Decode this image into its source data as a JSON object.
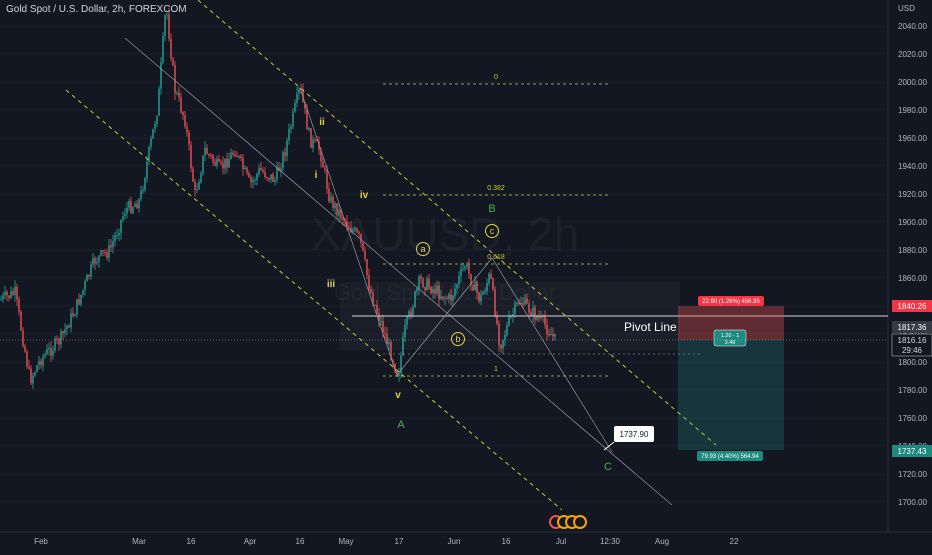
{
  "title": "Gold Spot / U.S. Dollar, 2h, FOREXCOM",
  "watermark": {
    "symbol": "XAUUSD, 2h",
    "name": "Gold Spot / U.S. Dollar"
  },
  "currency": "USD",
  "y_ticks": [
    "2040.00",
    "2020.00",
    "2000.00",
    "1980.00",
    "1960.00",
    "1940.00",
    "1920.00",
    "1900.00",
    "1880.00",
    "1860.00",
    "1840.00",
    "1820.00",
    "1800.00",
    "1780.00",
    "1760.00",
    "1740.00",
    "1720.00",
    "1700.00"
  ],
  "x_ticks": [
    "Feb",
    "Mar",
    "16",
    "Apr",
    "16",
    "May",
    "17",
    "Jun",
    "16",
    "Jul",
    "12:30",
    "Aug",
    "22"
  ],
  "price_labels": {
    "stop": "1840.26",
    "last": "1817.36",
    "current": "1816.16",
    "countdown": "29:46",
    "target": "1737.43"
  },
  "fib_labels": [
    "0",
    "0.382",
    "0.618",
    "1"
  ],
  "waves": {
    "i": "i",
    "ii": "ii",
    "iii": "iii",
    "iv": "iv",
    "v": "v",
    "A": "A",
    "B": "B",
    "C": "C",
    "a": "a",
    "b": "b",
    "c": "c"
  },
  "pivot_label": "Pivot Line",
  "callout": "1737.90",
  "position": {
    "risk": "22.90 (1.26%) 456.95",
    "ratio": "1.20 - 1",
    "ratio2": "3.49",
    "reward": "79.93 (4.40%) 564.94"
  },
  "colors": {
    "background": "#131722",
    "up": "#26a69a",
    "down": "#ef5350",
    "fib": "#c9c93a",
    "wave_green": "#4caf50",
    "wave_yellow": "#e0d34a"
  }
}
